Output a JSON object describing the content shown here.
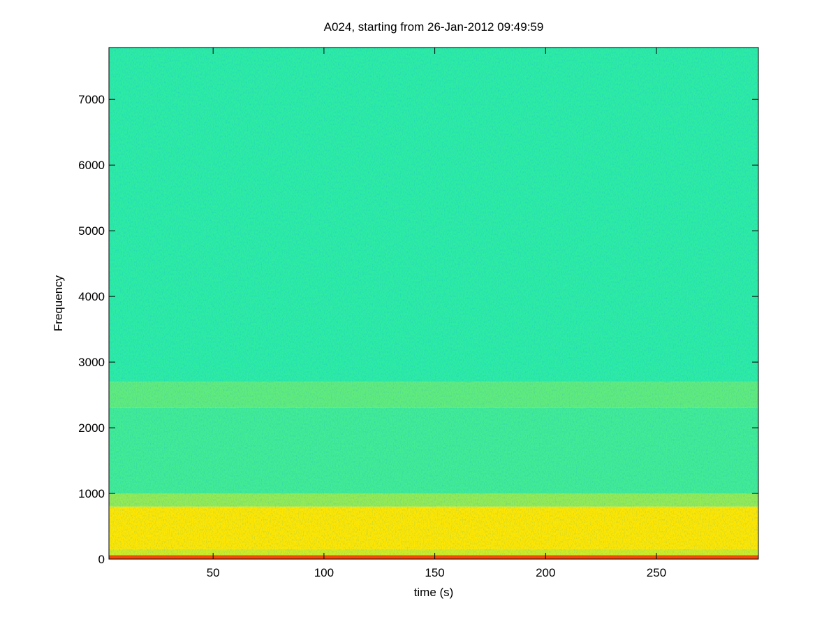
{
  "chart_data": {
    "type": "heatmap",
    "title": "A024, starting from 26-Jan-2012 09:49:59",
    "xlabel": "time (s)",
    "ylabel": "Frequency",
    "xlim": [
      3,
      296
    ],
    "ylim": [
      0,
      7790
    ],
    "xticks": [
      50,
      100,
      150,
      200,
      250
    ],
    "yticks": [
      0,
      1000,
      2000,
      3000,
      4000,
      5000,
      6000,
      7000
    ],
    "colormap": "jet",
    "y_edges": [
      0,
      60,
      150,
      800,
      1000,
      2300,
      2700,
      7790
    ],
    "values": [
      0.8,
      0.58,
      0.63,
      0.52,
      0.44,
      0.47,
      0.42
    ]
  }
}
